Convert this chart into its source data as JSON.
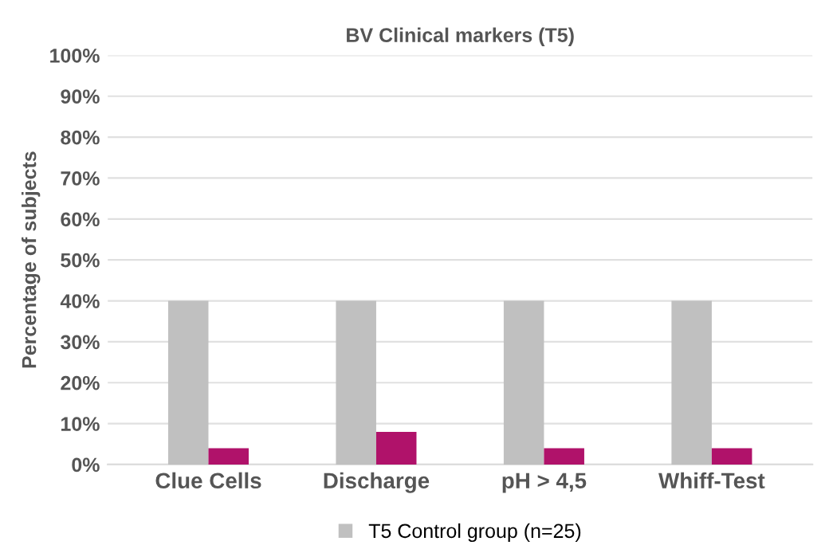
{
  "chart_data": {
    "type": "bar",
    "title": "BV Clinical markers (T5)",
    "ylabel": "Percentage of subjects",
    "categories": [
      "Clue Cells",
      "Discharge",
      "pH > 4,5",
      "Whiff-Test"
    ],
    "series": [
      {
        "name": "T5 Control group (n=25)",
        "color": "#c0c0c0",
        "values": [
          40,
          40,
          40,
          40
        ]
      },
      {
        "color": "#b0126a",
        "values": [
          4,
          8,
          4,
          4
        ]
      }
    ],
    "ylim": [
      0,
      100
    ],
    "yticks": [
      {
        "value": 0,
        "label": "0%"
      },
      {
        "value": 10,
        "label": "10%"
      },
      {
        "value": 20,
        "label": "20%"
      },
      {
        "value": 30,
        "label": "30%"
      },
      {
        "value": 40,
        "label": "40%"
      },
      {
        "value": 50,
        "label": "50%"
      },
      {
        "value": 60,
        "label": "60%"
      },
      {
        "value": 70,
        "label": "70%"
      },
      {
        "value": 80,
        "label": "80%"
      },
      {
        "value": 90,
        "label": "90%"
      },
      {
        "value": 100,
        "label": "100%"
      }
    ],
    "grid": "y",
    "legend": "bottom"
  }
}
